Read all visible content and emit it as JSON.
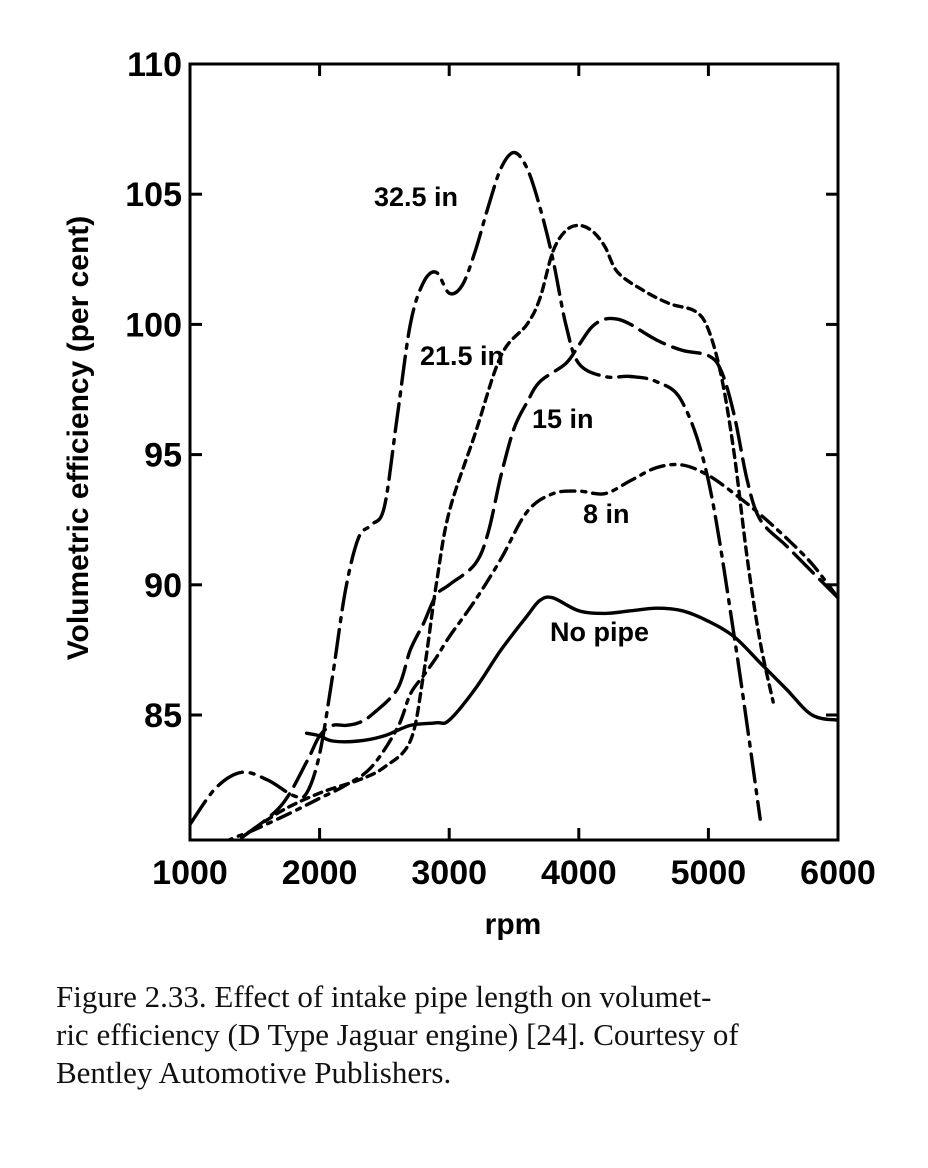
{
  "chart_data": {
    "type": "line",
    "xlabel": "rpm",
    "ylabel": "Volumetric efficiency (per cent)",
    "xlim": [
      1000,
      6000
    ],
    "ylim": [
      80.2,
      110
    ],
    "x_ticks": [
      "1000",
      "2000",
      "3000",
      "4000",
      "5000",
      "6000"
    ],
    "y_ticks": [
      "85",
      "90",
      "95",
      "100",
      "105",
      "110"
    ],
    "grid": false,
    "series": [
      {
        "name": "32.5 in",
        "style": "long-dash-dot",
        "x": [
          1000,
          1200,
          1400,
          1600,
          1800,
          1900,
          2000,
          2100,
          2200,
          2300,
          2400,
          2500,
          2600,
          2700,
          2800,
          2900,
          3000,
          3100,
          3200,
          3300,
          3400,
          3500,
          3600,
          3700,
          3800,
          3900,
          4000,
          4200,
          4400,
          4600,
          4800,
          5000,
          5200,
          5400
        ],
        "y": [
          80.8,
          82.2,
          82.8,
          82.5,
          81.9,
          82.0,
          83.5,
          86.5,
          89.8,
          91.8,
          92.3,
          93.0,
          96.5,
          100.0,
          101.6,
          102.0,
          101.2,
          101.5,
          102.8,
          104.5,
          106.0,
          106.6,
          106.0,
          104.5,
          102.5,
          100.0,
          98.5,
          98.0,
          98.0,
          97.8,
          97.0,
          94.0,
          88.0,
          81.0
        ]
      },
      {
        "name": "21.5 in",
        "style": "short-dash",
        "x": [
          1400,
          1700,
          2000,
          2300,
          2500,
          2700,
          2800,
          2900,
          3000,
          3200,
          3400,
          3600,
          3700,
          3800,
          3900,
          4000,
          4100,
          4200,
          4300,
          4500,
          4700,
          4900,
          5000,
          5100,
          5200,
          5300,
          5400,
          5500
        ],
        "y": [
          80.3,
          81.3,
          82.0,
          82.5,
          83.0,
          84.0,
          86.5,
          90.0,
          92.8,
          95.8,
          98.8,
          100.0,
          101.0,
          102.8,
          103.6,
          103.8,
          103.6,
          103.0,
          102.0,
          101.3,
          100.8,
          100.5,
          99.8,
          98.0,
          95.0,
          91.0,
          87.8,
          85.5
        ]
      },
      {
        "name": "15 in",
        "style": "long-dash",
        "x": [
          1400,
          1700,
          1900,
          2000,
          2100,
          2200,
          2300,
          2400,
          2600,
          2700,
          2800,
          2900,
          3000,
          3200,
          3300,
          3400,
          3500,
          3600,
          3700,
          3900,
          4000,
          4100,
          4200,
          4300,
          4400,
          4600,
          4800,
          5000,
          5100,
          5200,
          5300,
          5400,
          5600,
          5800,
          6000
        ],
        "y": [
          80.3,
          81.5,
          83.2,
          84.2,
          84.6,
          84.6,
          84.7,
          85.0,
          86.0,
          87.5,
          88.5,
          89.6,
          90.0,
          90.8,
          92.0,
          94.2,
          96.0,
          97.0,
          97.8,
          98.5,
          99.2,
          99.9,
          100.2,
          100.2,
          100.0,
          99.4,
          99.0,
          98.8,
          98.2,
          96.5,
          94.0,
          92.5,
          91.5,
          90.5,
          89.5
        ]
      },
      {
        "name": "8 in",
        "style": "dash-dot",
        "x": [
          1000,
          1300,
          1500,
          1800,
          2000,
          2200,
          2400,
          2600,
          2700,
          2800,
          2900,
          3000,
          3200,
          3400,
          3600,
          3800,
          4000,
          4200,
          4400,
          4600,
          4800,
          5000,
          5200,
          5400,
          5600,
          5800,
          6000
        ],
        "y": [
          79.5,
          80.2,
          80.6,
          81.3,
          81.8,
          82.3,
          83.0,
          84.5,
          85.8,
          86.5,
          87.2,
          88.0,
          89.4,
          91.0,
          92.8,
          93.5,
          93.6,
          93.5,
          94.0,
          94.5,
          94.6,
          94.2,
          93.5,
          92.7,
          91.8,
          90.8,
          89.5
        ]
      },
      {
        "name": "No pipe",
        "style": "solid",
        "x": [
          1900,
          2000,
          2100,
          2300,
          2500,
          2700,
          2900,
          3000,
          3200,
          3400,
          3600,
          3700,
          3800,
          4000,
          4200,
          4400,
          4600,
          4800,
          5000,
          5200,
          5400,
          5600,
          5800,
          6000
        ],
        "y": [
          84.3,
          84.2,
          84.0,
          84.0,
          84.2,
          84.6,
          84.7,
          84.8,
          86.0,
          87.5,
          88.8,
          89.4,
          89.5,
          89.0,
          88.9,
          89.0,
          89.1,
          89.0,
          88.6,
          88.0,
          87.0,
          86.0,
          85.0,
          84.8
        ]
      }
    ]
  },
  "caption": {
    "line1": "Figure 2.33.  Effect of intake pipe length on volumet-",
    "line2": "ric efficiency (D Type Jaguar engine) [24]. Courtesy of",
    "line3": "Bentley Automotive Publishers."
  }
}
